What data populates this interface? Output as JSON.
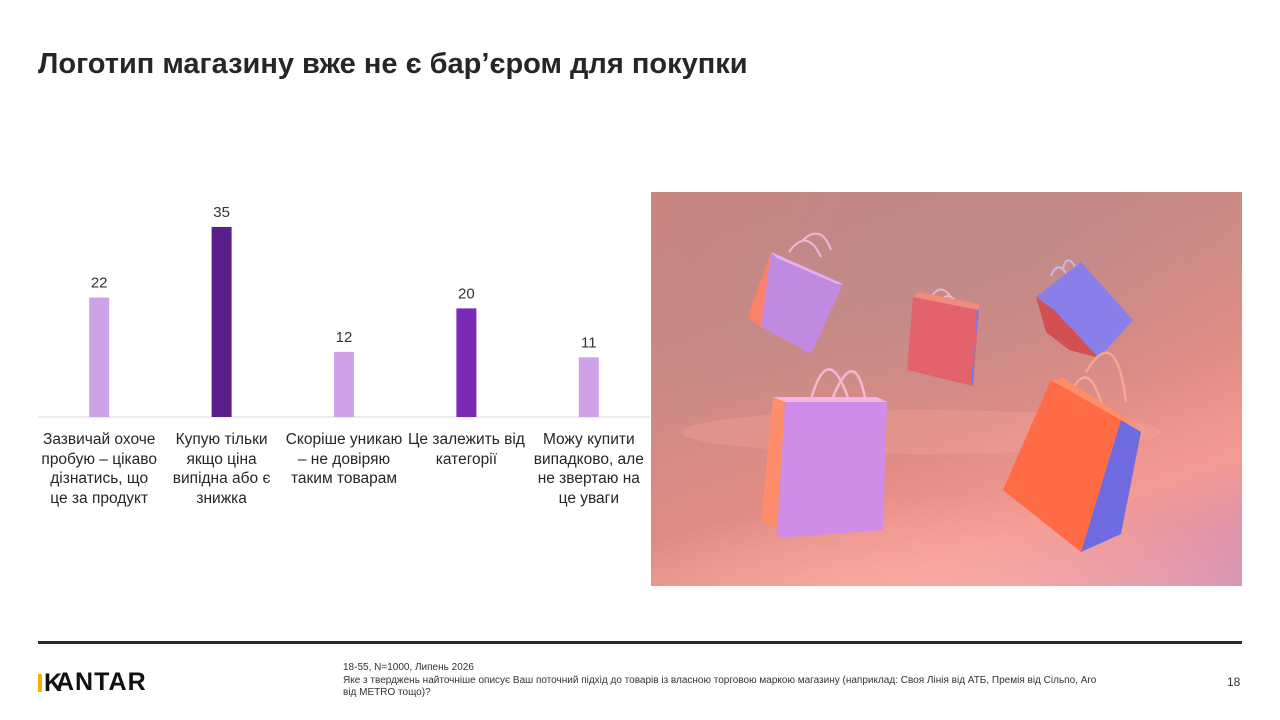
{
  "title": "Логотип магазину вже не є бар’єром для покупки",
  "chart_data": {
    "type": "bar",
    "categories": [
      "Зазвичай охоче пробую – цікаво дізнатись, що це за продукт",
      "Купую тільки якщо ціна випідна або є знижка",
      "Скоріше уникаю – не довіряю таким товарам",
      "Це залежить від категорії",
      "Можу купити випадково, але не звертаю на це уваги"
    ],
    "values": [
      22,
      35,
      12,
      20,
      11
    ],
    "bar_colors": [
      "#cfa2e8",
      "#5a1f8a",
      "#cfa2e8",
      "#7a2ab5",
      "#cfa2e8"
    ],
    "ylim": [
      0,
      35
    ],
    "grid": false
  },
  "footer": {
    "logo": "KANTAR",
    "note_line1": "18-55, N=1000, Липень 2026",
    "note_line2": "Яке з тверджень найточніше описує Ваш поточний підхід до товарів із власною торговою маркою магазину (наприклад: Своя Лінія від АТБ, Премія від Сільпо, Aro від METRO тощо)?",
    "page_number": "18"
  },
  "colors": {
    "logo_accent": "#f2b400",
    "text": "#262626"
  }
}
